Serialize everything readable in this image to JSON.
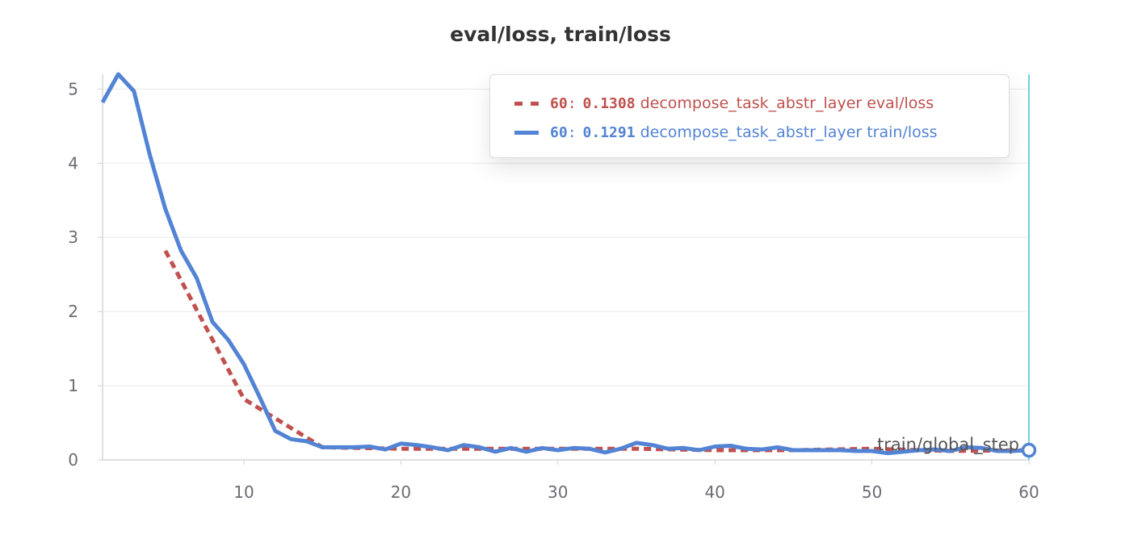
{
  "chart_data": {
    "type": "line",
    "title": "eval/loss, train/loss",
    "xlabel": "train/global_step",
    "ylabel": "",
    "xlim": [
      1,
      60
    ],
    "ylim": [
      0,
      5.2
    ],
    "xticks": [
      10,
      20,
      30,
      40,
      50,
      60
    ],
    "yticks": [
      0,
      1,
      2,
      3,
      4,
      5
    ],
    "grid": true,
    "legend_position": "top-right",
    "hover_step": 60,
    "series": [
      {
        "key": "train",
        "name": "decompose_task_abstr_layer train/loss",
        "color": "#5383d4",
        "dash": "solid",
        "hover_value": "0.1291",
        "x": [
          1,
          2,
          3,
          4,
          5,
          6,
          7,
          8,
          9,
          10,
          11,
          12,
          13,
          14,
          15,
          16,
          17,
          18,
          19,
          20,
          21,
          22,
          23,
          24,
          25,
          26,
          27,
          28,
          29,
          30,
          31,
          32,
          33,
          34,
          35,
          36,
          37,
          38,
          39,
          40,
          41,
          42,
          43,
          44,
          45,
          46,
          47,
          48,
          49,
          50,
          51,
          52,
          53,
          54,
          55,
          56,
          57,
          58,
          59,
          60
        ],
        "y": [
          4.82,
          5.2,
          4.97,
          4.12,
          3.38,
          2.82,
          2.45,
          1.86,
          1.62,
          1.29,
          0.85,
          0.39,
          0.28,
          0.25,
          0.17,
          0.17,
          0.17,
          0.18,
          0.14,
          0.22,
          0.2,
          0.17,
          0.13,
          0.2,
          0.17,
          0.11,
          0.16,
          0.11,
          0.16,
          0.13,
          0.16,
          0.15,
          0.1,
          0.15,
          0.23,
          0.2,
          0.15,
          0.16,
          0.13,
          0.18,
          0.19,
          0.15,
          0.14,
          0.17,
          0.13,
          0.13,
          0.13,
          0.13,
          0.12,
          0.12,
          0.09,
          0.11,
          0.13,
          0.14,
          0.12,
          0.17,
          0.16,
          0.12,
          0.12,
          0.13
        ]
      },
      {
        "key": "eval",
        "name": "decompose_task_abstr_layer eval/loss",
        "color": "#c0504d",
        "dash": "dashed",
        "hover_value": "0.1308",
        "x": [
          5,
          10,
          15,
          20,
          25,
          30,
          35,
          40,
          45,
          50,
          55,
          60
        ],
        "y": [
          2.82,
          0.82,
          0.17,
          0.15,
          0.15,
          0.15,
          0.15,
          0.13,
          0.13,
          0.15,
          0.12,
          0.13
        ]
      }
    ]
  }
}
